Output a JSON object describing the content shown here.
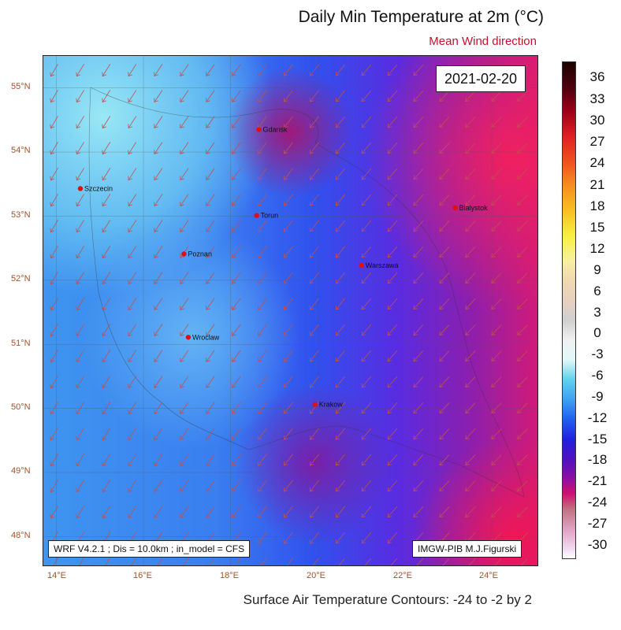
{
  "title": "Daily Min Temperature at 2m (°C)",
  "subtitle": "Mean Wind direction",
  "date": "2021-02-20",
  "info": "WRF V4.2.1 ; Dis = 10.0km ; in_model = CFS",
  "credit": "IMGW-PIB M.J.Figurski",
  "footer": "Surface Air Temperature Contours: -24 to -2 by 2",
  "lat_labels": [
    "55°N",
    "54°N",
    "53°N",
    "52°N",
    "51°N",
    "50°N",
    "49°N",
    "48°N"
  ],
  "lon_labels": [
    "14°E",
    "16°E",
    "18°E",
    "20°E",
    "22°E",
    "24°E"
  ],
  "colorbar": {
    "labels": [
      "36",
      "33",
      "30",
      "27",
      "24",
      "21",
      "18",
      "15",
      "12",
      "9",
      "6",
      "3",
      "0",
      "-3",
      "-6",
      "-9",
      "-12",
      "-15",
      "-18",
      "-21",
      "-24",
      "-27",
      "-30"
    ]
  },
  "cities": [
    {
      "name": "Gdansk",
      "lat": 54.35,
      "lon": 18.65
    },
    {
      "name": "Szczecin",
      "lat": 53.43,
      "lon": 14.55
    },
    {
      "name": "Torun",
      "lat": 53.01,
      "lon": 18.6
    },
    {
      "name": "Bialystok",
      "lat": 53.13,
      "lon": 23.16
    },
    {
      "name": "Poznan",
      "lat": 52.41,
      "lon": 16.93
    },
    {
      "name": "Warszawa",
      "lat": 52.23,
      "lon": 21.01
    },
    {
      "name": "Wroclaw",
      "lat": 51.11,
      "lon": 17.03
    },
    {
      "name": "Krakow",
      "lat": 50.06,
      "lon": 19.94
    }
  ],
  "colors": {
    "city_marker": "#e01010",
    "wind_arrow": "#c05050",
    "title_accent": "#c8102e"
  }
}
